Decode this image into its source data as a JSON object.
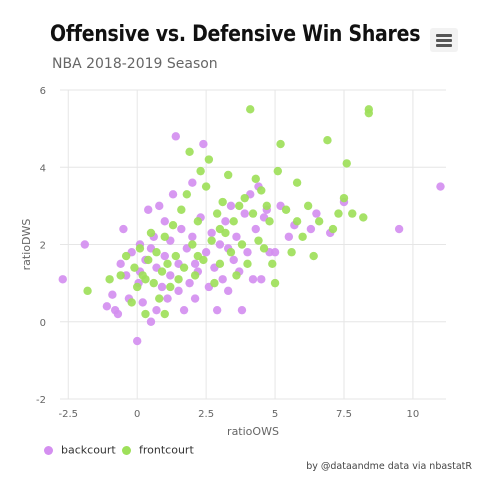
{
  "header": {
    "title": "Offensive vs. Defensive Win Shares",
    "subtitle": "NBA 2018-2019 Season",
    "menu_icon": "hamburger-menu-icon"
  },
  "credits": "by @dataandme data via nbastatR",
  "colors": {
    "backcourt": "#d48ff0",
    "frontcourt": "#9ee05a",
    "grid": "#e6e6e6",
    "axis_text": "#666666"
  },
  "chart_data": {
    "type": "scatter",
    "title": "Offensive vs. Defensive Win Shares",
    "subtitle": "NBA 2018-2019 Season",
    "xlabel": "ratioOWS",
    "ylabel": "ratioDWS",
    "xlim": [
      -2.8,
      11.2
    ],
    "ylim": [
      -2,
      6
    ],
    "xticks": [
      -2.5,
      0,
      2.5,
      5,
      7.5,
      10
    ],
    "xtick_labels": [
      "-2.5",
      "0",
      "2.5",
      "5",
      "7.5",
      "10"
    ],
    "yticks": [
      -2,
      0,
      2,
      4,
      6
    ],
    "ytick_labels": [
      "-2",
      "0",
      "2",
      "4",
      "6"
    ],
    "grid": true,
    "legend_position": "bottom-left",
    "series": [
      {
        "name": "backcourt",
        "color": "#d48ff0",
        "points": [
          [
            -2.7,
            1.1
          ],
          [
            -1.9,
            2.0
          ],
          [
            -1.1,
            0.4
          ],
          [
            -0.9,
            0.7
          ],
          [
            -0.8,
            0.3
          ],
          [
            -0.7,
            0.2
          ],
          [
            -0.6,
            1.5
          ],
          [
            -0.5,
            2.4
          ],
          [
            -0.4,
            1.2
          ],
          [
            -0.3,
            0.6
          ],
          [
            -0.2,
            1.8
          ],
          [
            0.0,
            -0.5
          ],
          [
            0.05,
            1.0
          ],
          [
            0.1,
            1.3
          ],
          [
            0.1,
            2.0
          ],
          [
            0.2,
            0.5
          ],
          [
            0.3,
            1.6
          ],
          [
            0.4,
            2.9
          ],
          [
            0.5,
            0.0
          ],
          [
            0.5,
            1.9
          ],
          [
            0.6,
            2.2
          ],
          [
            0.7,
            0.3
          ],
          [
            0.7,
            1.4
          ],
          [
            0.8,
            3.0
          ],
          [
            0.9,
            0.9
          ],
          [
            1.0,
            1.7
          ],
          [
            1.0,
            2.6
          ],
          [
            1.1,
            0.6
          ],
          [
            1.2,
            1.2
          ],
          [
            1.2,
            2.1
          ],
          [
            1.3,
            3.3
          ],
          [
            1.4,
            4.8
          ],
          [
            1.5,
            0.8
          ],
          [
            1.5,
            1.5
          ],
          [
            1.6,
            2.4
          ],
          [
            1.7,
            0.3
          ],
          [
            1.8,
            1.9
          ],
          [
            1.9,
            1.0
          ],
          [
            2.0,
            3.6
          ],
          [
            2.0,
            2.2
          ],
          [
            2.1,
            0.6
          ],
          [
            2.2,
            1.3
          ],
          [
            2.3,
            2.7
          ],
          [
            2.4,
            4.6
          ],
          [
            2.5,
            1.8
          ],
          [
            2.6,
            0.9
          ],
          [
            2.7,
            2.3
          ],
          [
            2.8,
            1.4
          ],
          [
            2.9,
            0.3
          ],
          [
            3.0,
            2.0
          ],
          [
            3.1,
            1.1
          ],
          [
            3.2,
            2.6
          ],
          [
            3.3,
            0.8
          ],
          [
            3.4,
            3.0
          ],
          [
            3.5,
            1.6
          ],
          [
            3.6,
            2.2
          ],
          [
            3.7,
            1.3
          ],
          [
            3.8,
            0.3
          ],
          [
            3.9,
            2.8
          ],
          [
            4.0,
            1.8
          ],
          [
            4.1,
            3.3
          ],
          [
            4.2,
            1.1
          ],
          [
            4.3,
            2.4
          ],
          [
            4.4,
            3.5
          ],
          [
            4.5,
            1.1
          ],
          [
            4.6,
            2.7
          ],
          [
            4.8,
            1.8
          ],
          [
            5.0,
            1.8
          ],
          [
            5.2,
            3.0
          ],
          [
            5.5,
            2.2
          ],
          [
            5.7,
            2.5
          ],
          [
            6.3,
            2.4
          ],
          [
            6.5,
            2.8
          ],
          [
            7.0,
            2.3
          ],
          [
            7.5,
            3.1
          ],
          [
            9.5,
            2.4
          ],
          [
            11.0,
            3.5
          ],
          [
            4.7,
            2.9
          ],
          [
            3.3,
            1.9
          ],
          [
            2.1,
            1.5
          ]
        ]
      },
      {
        "name": "frontcourt",
        "color": "#9ee05a",
        "points": [
          [
            -1.8,
            0.8
          ],
          [
            -1.0,
            1.1
          ],
          [
            -0.6,
            1.2
          ],
          [
            -0.4,
            1.7
          ],
          [
            -0.2,
            0.5
          ],
          [
            -0.1,
            1.4
          ],
          [
            0.0,
            0.9
          ],
          [
            0.1,
            1.9
          ],
          [
            0.2,
            1.2
          ],
          [
            0.3,
            0.2
          ],
          [
            0.4,
            1.6
          ],
          [
            0.5,
            2.3
          ],
          [
            0.6,
            1.0
          ],
          [
            0.7,
            1.8
          ],
          [
            0.8,
            0.6
          ],
          [
            0.9,
            1.3
          ],
          [
            1.0,
            2.2
          ],
          [
            1.1,
            1.5
          ],
          [
            1.2,
            0.9
          ],
          [
            1.3,
            2.5
          ],
          [
            1.4,
            1.7
          ],
          [
            1.5,
            1.1
          ],
          [
            1.6,
            2.9
          ],
          [
            1.7,
            1.4
          ],
          [
            1.8,
            3.3
          ],
          [
            1.9,
            4.4
          ],
          [
            2.0,
            2.0
          ],
          [
            2.1,
            1.2
          ],
          [
            2.2,
            2.6
          ],
          [
            2.3,
            3.9
          ],
          [
            2.4,
            1.6
          ],
          [
            2.5,
            3.5
          ],
          [
            2.6,
            4.2
          ],
          [
            2.7,
            2.1
          ],
          [
            2.8,
            1.0
          ],
          [
            2.9,
            2.8
          ],
          [
            3.0,
            1.5
          ],
          [
            3.1,
            3.1
          ],
          [
            3.2,
            2.3
          ],
          [
            3.3,
            3.8
          ],
          [
            3.4,
            1.8
          ],
          [
            3.5,
            2.6
          ],
          [
            3.6,
            1.2
          ],
          [
            3.7,
            3.0
          ],
          [
            3.8,
            2.0
          ],
          [
            3.9,
            3.2
          ],
          [
            4.0,
            1.5
          ],
          [
            4.1,
            5.5
          ],
          [
            4.2,
            2.8
          ],
          [
            4.3,
            3.7
          ],
          [
            4.4,
            2.1
          ],
          [
            4.5,
            3.4
          ],
          [
            4.6,
            1.9
          ],
          [
            4.7,
            3.0
          ],
          [
            4.8,
            2.6
          ],
          [
            4.9,
            1.5
          ],
          [
            5.0,
            1.0
          ],
          [
            5.1,
            3.9
          ],
          [
            5.2,
            4.6
          ],
          [
            5.4,
            2.9
          ],
          [
            5.6,
            1.8
          ],
          [
            5.8,
            3.6
          ],
          [
            6.0,
            2.2
          ],
          [
            6.2,
            3.0
          ],
          [
            6.4,
            1.7
          ],
          [
            6.6,
            2.6
          ],
          [
            6.9,
            4.7
          ],
          [
            7.1,
            2.4
          ],
          [
            7.3,
            2.8
          ],
          [
            7.5,
            3.2
          ],
          [
            7.6,
            4.1
          ],
          [
            7.8,
            2.8
          ],
          [
            8.2,
            2.7
          ],
          [
            8.4,
            5.5
          ],
          [
            8.4,
            5.4
          ],
          [
            5.8,
            2.6
          ],
          [
            3.0,
            2.4
          ],
          [
            2.2,
            1.7
          ],
          [
            1.0,
            0.2
          ],
          [
            0.3,
            1.1
          ]
        ]
      }
    ]
  },
  "legend": [
    {
      "label": "backcourt",
      "color": "#d48ff0"
    },
    {
      "label": "frontcourt",
      "color": "#9ee05a"
    }
  ]
}
